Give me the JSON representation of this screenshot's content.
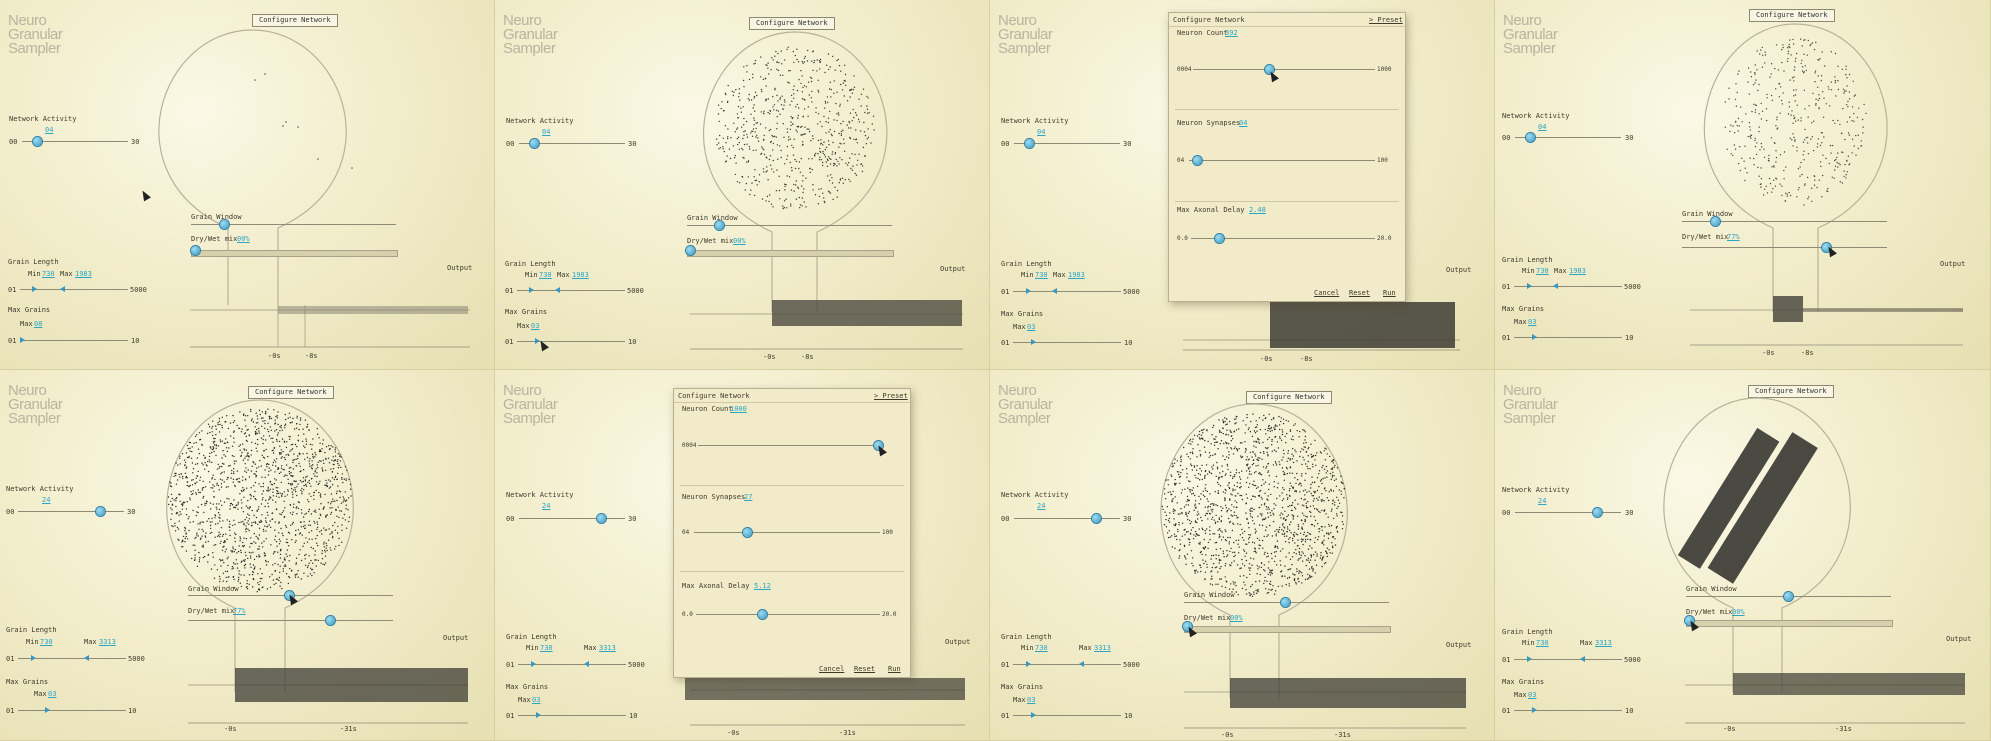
{
  "app": {
    "logo_lines": [
      "Neuro",
      "Granular",
      "Sampler"
    ],
    "configure_button": "Configure Network"
  },
  "colors": {
    "background": "#efe9c6",
    "accent": "#3597c2",
    "value_text": "#2aa6c6",
    "ink": "#3f3b2c"
  },
  "labels": {
    "network_activity": "Network Activity",
    "grain_window": "Grain Window",
    "dry_wet_mix": "Dry/Wet mix",
    "output": "Output",
    "grain_length": "Grain Length",
    "min": "Min",
    "max": "Max",
    "max_grains": "Max Grains",
    "na_min": "00",
    "na_max": "30",
    "gl_min": "01",
    "gl_max": "5000",
    "mg_min": "01",
    "mg_max": "10"
  },
  "panels": [
    {
      "network_activity": "04",
      "dry_wet_pct": "00%",
      "grain_min": "730",
      "grain_max": "1983",
      "max_grains": "08",
      "time_left": "-0s",
      "time_right": "-8s"
    },
    {
      "network_activity": "04",
      "dry_wet_pct": "00%",
      "grain_min": "730",
      "grain_max": "1983",
      "max_grains": "03",
      "time_left": "-0s",
      "time_right": "-8s"
    },
    {
      "network_activity": "04",
      "dry_wet_pct": "",
      "grain_min": "730",
      "grain_max": "1983",
      "max_grains": "03",
      "time_left": "-0s",
      "time_right": "-8s"
    },
    {
      "network_activity": "04",
      "dry_wet_pct": "77%",
      "grain_min": "730",
      "grain_max": "1983",
      "max_grains": "03",
      "time_left": "-0s",
      "time_right": "-8s"
    },
    {
      "network_activity": "24",
      "dry_wet_pct": "77%",
      "grain_min": "730",
      "grain_max": "3313",
      "max_grains": "03",
      "time_left": "-0s",
      "time_right": "-31s"
    },
    {
      "network_activity": "24",
      "dry_wet_pct": "",
      "grain_min": "730",
      "grain_max": "3313",
      "max_grains": "03",
      "time_left": "-0s",
      "time_right": "-31s"
    },
    {
      "network_activity": "24",
      "dry_wet_pct": "00%",
      "grain_min": "730",
      "grain_max": "3313",
      "max_grains": "03",
      "time_left": "-0s",
      "time_right": "-31s"
    },
    {
      "network_activity": "24",
      "dry_wet_pct": "00%",
      "grain_min": "730",
      "grain_max": "3313",
      "max_grains": "03",
      "time_left": "-0s",
      "time_right": "-31s"
    }
  ],
  "dialogs": [
    {
      "title": "Configure Network",
      "preset": "> Preset",
      "neuron_count_label": "Neuron Count",
      "neuron_count": "392",
      "nc_min": "0004",
      "nc_max": "1000",
      "synapses_label": "Neuron Synapses",
      "synapses": "04",
      "syn_min": "04",
      "syn_max": "100",
      "delay_label": "Max Axonal Delay",
      "delay": "2.48",
      "delay_min": "0.0",
      "delay_max": "20.0",
      "cancel": "Cancel",
      "reset": "Reset",
      "run": "Run"
    },
    {
      "title": "Configure Network",
      "preset": "> Preset",
      "neuron_count_label": "Neuron Count",
      "neuron_count": "1000",
      "nc_min": "0004",
      "nc_max": "1000",
      "synapses_label": "Neuron Synapses",
      "synapses": "27",
      "syn_min": "04",
      "syn_max": "100",
      "delay_label": "Max Axonal Delay",
      "delay": "5.12",
      "delay_min": "0.0",
      "delay_max": "20.0",
      "cancel": "Cancel",
      "reset": "Reset",
      "run": "Run"
    }
  ]
}
